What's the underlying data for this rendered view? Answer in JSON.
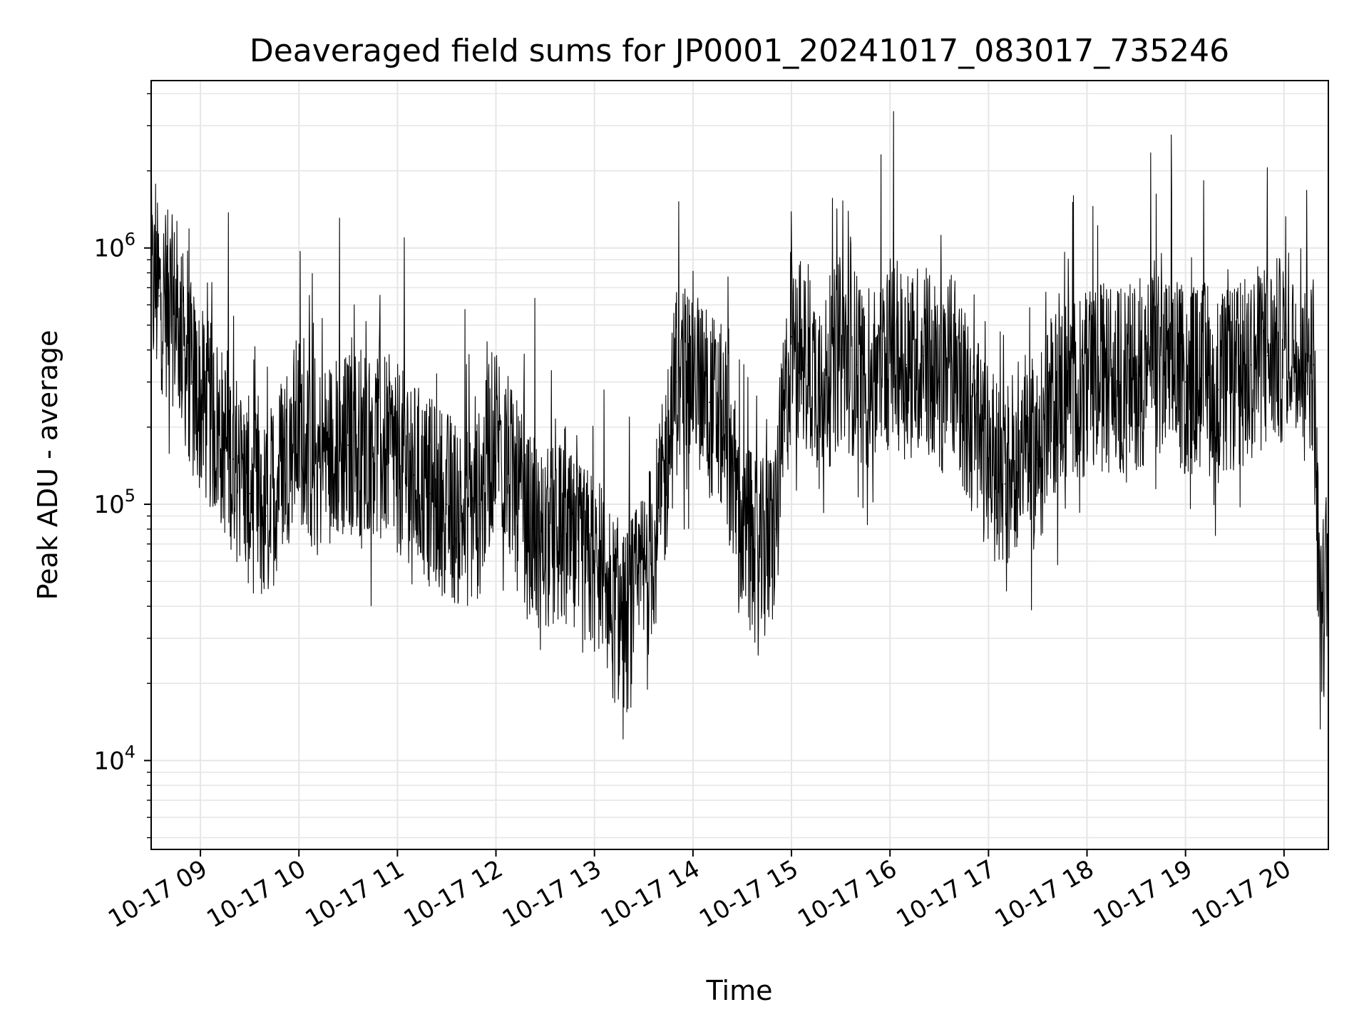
{
  "chart_data": {
    "type": "line",
    "title": "Deaveraged field sums for JP0001_20241017_083017_735246",
    "xlabel": "Time",
    "ylabel": "Peak ADU - average",
    "yscale": "log",
    "ylim": [
      4500,
      4500000
    ],
    "xlim": [
      "2024-10-17 08:30",
      "2024-10-17 20:27"
    ],
    "grid": "on (major and minor)",
    "line_color": "#000000",
    "x_tick_labels": [
      "10-17 09",
      "10-17 10",
      "10-17 11",
      "10-17 12",
      "10-17 13",
      "10-17 14",
      "10-17 15",
      "10-17 16",
      "10-17 17",
      "10-17 18",
      "10-17 19",
      "10-17 20"
    ],
    "y_tick_labels": [
      {
        "base": "10",
        "exp": "4"
      },
      {
        "base": "10",
        "exp": "5"
      },
      {
        "base": "10",
        "exp": "6"
      }
    ],
    "series": [
      {
        "x": [
          "2024-10-17 08:30",
          "2024-10-17 08:35",
          "2024-10-17 08:40",
          "2024-10-17 08:45",
          "2024-10-17 08:50",
          "2024-10-17 08:55",
          "2024-10-17 09:00",
          "2024-10-17 09:10",
          "2024-10-17 09:20",
          "2024-10-17 09:30",
          "2024-10-17 09:40",
          "2024-10-17 09:50",
          "2024-10-17 10:00",
          "2024-10-17 10:10",
          "2024-10-17 10:20",
          "2024-10-17 10:30",
          "2024-10-17 10:40",
          "2024-10-17 10:50",
          "2024-10-17 11:00",
          "2024-10-17 11:10",
          "2024-10-17 11:20",
          "2024-10-17 11:30",
          "2024-10-17 11:40",
          "2024-10-17 11:50",
          "2024-10-17 12:00",
          "2024-10-17 12:10",
          "2024-10-17 12:20",
          "2024-10-17 12:30",
          "2024-10-17 12:40",
          "2024-10-17 12:50",
          "2024-10-17 13:00",
          "2024-10-17 13:10",
          "2024-10-17 13:20",
          "2024-10-17 13:30",
          "2024-10-17 13:40",
          "2024-10-17 13:50",
          "2024-10-17 14:00",
          "2024-10-17 14:10",
          "2024-10-17 14:20",
          "2024-10-17 14:30",
          "2024-10-17 14:40",
          "2024-10-17 14:50",
          "2024-10-17 15:00",
          "2024-10-17 15:10",
          "2024-10-17 15:20",
          "2024-10-17 15:30",
          "2024-10-17 15:40",
          "2024-10-17 15:50",
          "2024-10-17 16:00",
          "2024-10-17 16:10",
          "2024-10-17 16:20",
          "2024-10-17 16:30",
          "2024-10-17 16:40",
          "2024-10-17 16:50",
          "2024-10-17 17:00",
          "2024-10-17 17:10",
          "2024-10-17 17:20",
          "2024-10-17 17:30",
          "2024-10-17 17:40",
          "2024-10-17 17:50",
          "2024-10-17 18:00",
          "2024-10-17 18:10",
          "2024-10-17 18:20",
          "2024-10-17 18:30",
          "2024-10-17 18:40",
          "2024-10-17 18:50",
          "2024-10-17 19:00",
          "2024-10-17 19:10",
          "2024-10-17 19:20",
          "2024-10-17 19:30",
          "2024-10-17 19:40",
          "2024-10-17 19:50",
          "2024-10-17 20:00",
          "2024-10-17 20:10",
          "2024-10-17 20:18",
          "2024-10-17 20:22",
          "2024-10-17 20:27"
        ],
        "y": [
          700000,
          650000,
          600000,
          550000,
          400000,
          300000,
          250000,
          200000,
          150000,
          110000,
          90000,
          150000,
          200000,
          150000,
          160000,
          170000,
          180000,
          175000,
          150000,
          130000,
          110000,
          100000,
          90000,
          100000,
          200000,
          120000,
          80000,
          70000,
          75000,
          60000,
          60000,
          40000,
          35000,
          50000,
          90000,
          300000,
          350000,
          250000,
          200000,
          80000,
          60000,
          80000,
          450000,
          350000,
          300000,
          400000,
          350000,
          300000,
          400000,
          350000,
          380000,
          300000,
          350000,
          200000,
          150000,
          120000,
          180000,
          150000,
          250000,
          300000,
          280000,
          320000,
          300000,
          320000,
          350000,
          330000,
          300000,
          320000,
          280000,
          300000,
          350000,
          380000,
          400000,
          500000,
          350000,
          30000,
          60000
        ]
      }
    ]
  }
}
